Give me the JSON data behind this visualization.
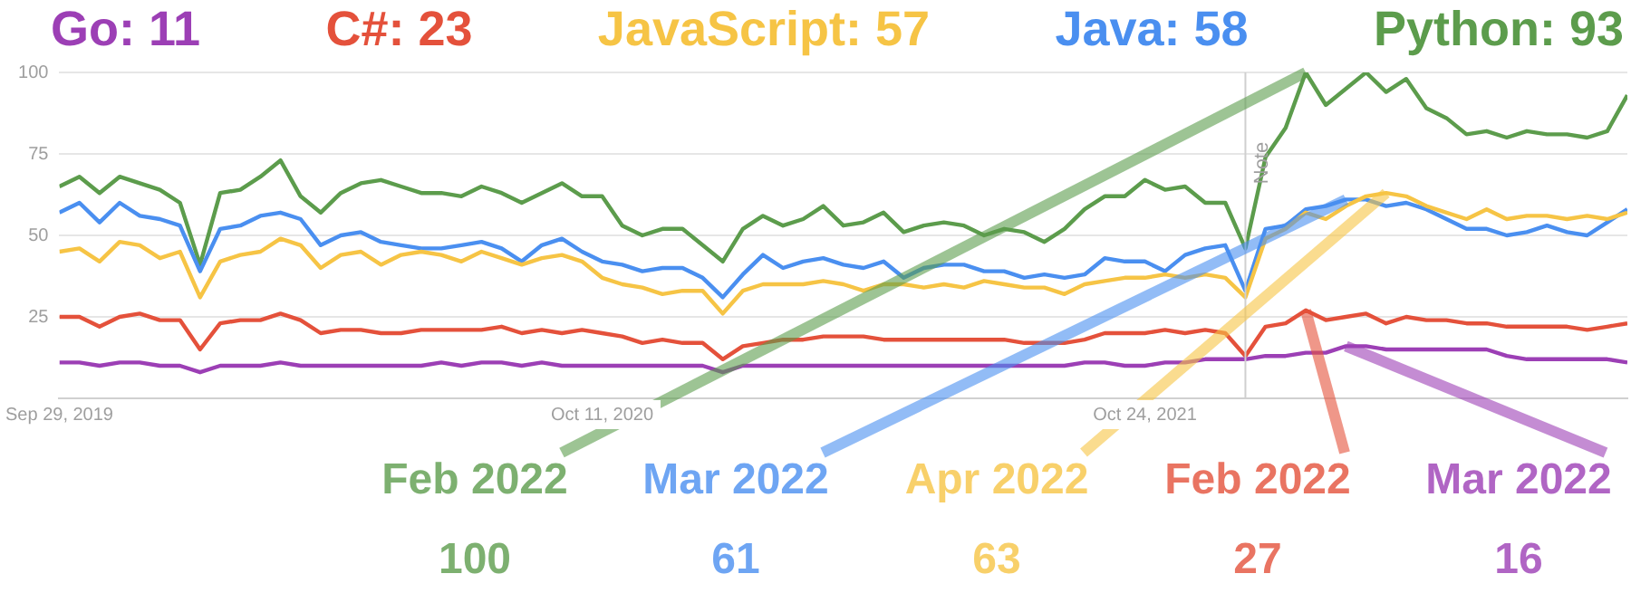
{
  "chart_data": {
    "type": "line",
    "x": [
      "2019-09-29",
      "2019-10-13",
      "2019-10-27",
      "2019-11-10",
      "2019-11-24",
      "2019-12-08",
      "2019-12-22",
      "2020-01-05",
      "2020-01-19",
      "2020-02-02",
      "2020-02-16",
      "2020-03-01",
      "2020-03-15",
      "2020-03-29",
      "2020-04-12",
      "2020-04-26",
      "2020-05-10",
      "2020-05-24",
      "2020-06-07",
      "2020-06-21",
      "2020-07-05",
      "2020-07-19",
      "2020-08-02",
      "2020-08-16",
      "2020-08-30",
      "2020-09-13",
      "2020-09-27",
      "2020-10-11",
      "2020-10-25",
      "2020-11-08",
      "2020-11-22",
      "2020-12-06",
      "2020-12-20",
      "2021-01-03",
      "2021-01-17",
      "2021-01-31",
      "2021-02-14",
      "2021-02-28",
      "2021-03-14",
      "2021-03-28",
      "2021-04-11",
      "2021-04-25",
      "2021-05-09",
      "2021-05-23",
      "2021-06-06",
      "2021-06-20",
      "2021-07-04",
      "2021-07-18",
      "2021-08-01",
      "2021-08-15",
      "2021-08-29",
      "2021-09-12",
      "2021-09-26",
      "2021-10-10",
      "2021-10-24",
      "2021-11-07",
      "2021-11-21",
      "2021-12-05",
      "2021-12-19",
      "2022-01-02",
      "2022-01-16",
      "2022-01-30",
      "2022-02-13",
      "2022-02-27",
      "2022-03-13",
      "2022-03-27",
      "2022-04-10",
      "2022-04-24",
      "2022-05-08",
      "2022-05-22",
      "2022-06-05",
      "2022-06-19",
      "2022-07-03",
      "2022-07-17",
      "2022-07-31",
      "2022-08-14",
      "2022-08-28",
      "2022-09-11",
      "2022-09-25"
    ],
    "series": [
      {
        "name": "Go: 11",
        "color": "#9c3fb5",
        "values": [
          11,
          11,
          10,
          11,
          11,
          10,
          10,
          8,
          10,
          10,
          10,
          11,
          10,
          10,
          10,
          10,
          10,
          10,
          10,
          11,
          10,
          11,
          11,
          10,
          11,
          10,
          10,
          10,
          10,
          10,
          10,
          10,
          10,
          8,
          10,
          10,
          10,
          10,
          10,
          10,
          10,
          10,
          10,
          10,
          10,
          10,
          10,
          10,
          10,
          10,
          10,
          11,
          11,
          10,
          10,
          11,
          11,
          12,
          12,
          12,
          13,
          13,
          14,
          14,
          16,
          16,
          15,
          15,
          15,
          15,
          15,
          15,
          13,
          12,
          12,
          12,
          12,
          12,
          11
        ]
      },
      {
        "name": "C#: 23",
        "color": "#e4513b",
        "values": [
          25,
          25,
          22,
          25,
          26,
          24,
          24,
          15,
          23,
          24,
          24,
          26,
          24,
          20,
          21,
          21,
          20,
          20,
          21,
          21,
          21,
          21,
          22,
          20,
          21,
          20,
          21,
          20,
          19,
          17,
          18,
          17,
          17,
          12,
          16,
          17,
          18,
          18,
          19,
          19,
          19,
          18,
          18,
          18,
          18,
          18,
          18,
          18,
          17,
          17,
          17,
          18,
          20,
          20,
          20,
          21,
          20,
          21,
          20,
          13,
          22,
          23,
          27,
          24,
          25,
          26,
          23,
          25,
          24,
          24,
          23,
          23,
          22,
          22,
          22,
          22,
          21,
          22,
          23
        ]
      },
      {
        "name": "JavaScript: 57",
        "color": "#f6c445",
        "values": [
          45,
          46,
          42,
          48,
          47,
          43,
          45,
          31,
          42,
          44,
          45,
          49,
          47,
          40,
          44,
          45,
          41,
          44,
          45,
          44,
          42,
          45,
          43,
          41,
          43,
          44,
          42,
          37,
          35,
          34,
          32,
          33,
          33,
          26,
          33,
          35,
          35,
          35,
          36,
          35,
          33,
          35,
          35,
          34,
          35,
          34,
          36,
          35,
          34,
          34,
          32,
          35,
          36,
          37,
          37,
          38,
          37,
          38,
          37,
          31,
          49,
          52,
          57,
          55,
          59,
          62,
          63,
          62,
          59,
          57,
          55,
          58,
          55,
          56,
          56,
          55,
          56,
          55,
          57
        ]
      },
      {
        "name": "Java: 58",
        "color": "#4a8ff0",
        "values": [
          57,
          60,
          54,
          60,
          56,
          55,
          53,
          39,
          52,
          53,
          56,
          57,
          55,
          47,
          50,
          51,
          48,
          47,
          46,
          46,
          47,
          48,
          46,
          42,
          47,
          49,
          45,
          42,
          41,
          39,
          40,
          40,
          37,
          31,
          38,
          44,
          40,
          42,
          43,
          41,
          40,
          42,
          37,
          40,
          41,
          41,
          39,
          39,
          37,
          38,
          37,
          38,
          43,
          42,
          42,
          39,
          44,
          46,
          47,
          33,
          52,
          53,
          58,
          59,
          61,
          61,
          59,
          60,
          58,
          55,
          52,
          52,
          50,
          51,
          53,
          51,
          50,
          54,
          58
        ]
      },
      {
        "name": "Python: 93",
        "color": "#5c9c4c",
        "values": [
          65,
          68,
          63,
          68,
          66,
          64,
          60,
          41,
          63,
          64,
          68,
          73,
          62,
          57,
          63,
          66,
          67,
          65,
          63,
          63,
          62,
          65,
          63,
          60,
          63,
          66,
          62,
          62,
          53,
          50,
          52,
          52,
          47,
          42,
          52,
          56,
          53,
          55,
          59,
          53,
          54,
          57,
          51,
          53,
          54,
          53,
          50,
          52,
          51,
          48,
          52,
          58,
          62,
          62,
          67,
          64,
          65,
          60,
          60,
          46,
          74,
          83,
          100,
          90,
          95,
          100,
          94,
          98,
          89,
          86,
          81,
          82,
          80,
          82,
          81,
          81,
          80,
          82,
          93
        ]
      }
    ],
    "xlim": [
      "2019-09-29",
      "2022-09-25"
    ],
    "xticks": [
      {
        "value": "2019-09-29",
        "label": "Sep 29, 2019"
      },
      {
        "value": "2020-10-11",
        "label": "Oct 11, 2020"
      },
      {
        "value": "2021-10-24",
        "label": "Oct 24, 2021"
      }
    ],
    "ylim": [
      0,
      100
    ],
    "yticks": [
      {
        "value": 0,
        "label": null
      },
      25,
      50,
      75,
      100
    ],
    "grid": "y",
    "legend": "top",
    "ref_lines": [
      {
        "axis": "x",
        "value": "2022-01-02",
        "label": "Note"
      }
    ],
    "annotations": [
      {
        "text": "Feb 2022\n100",
        "x": "2022-02-13",
        "y": 100
      },
      {
        "text": "Mar 2022\n61",
        "x": "2022-03-13",
        "y": 61
      },
      {
        "text": "Apr 2022\n63",
        "x": "2022-04-10",
        "y": 63
      },
      {
        "text": "Feb 2022\n27",
        "x": "2022-02-13",
        "y": 27
      },
      {
        "text": "Mar 2022\n16",
        "x": "2022-03-13",
        "y": 16
      }
    ]
  }
}
